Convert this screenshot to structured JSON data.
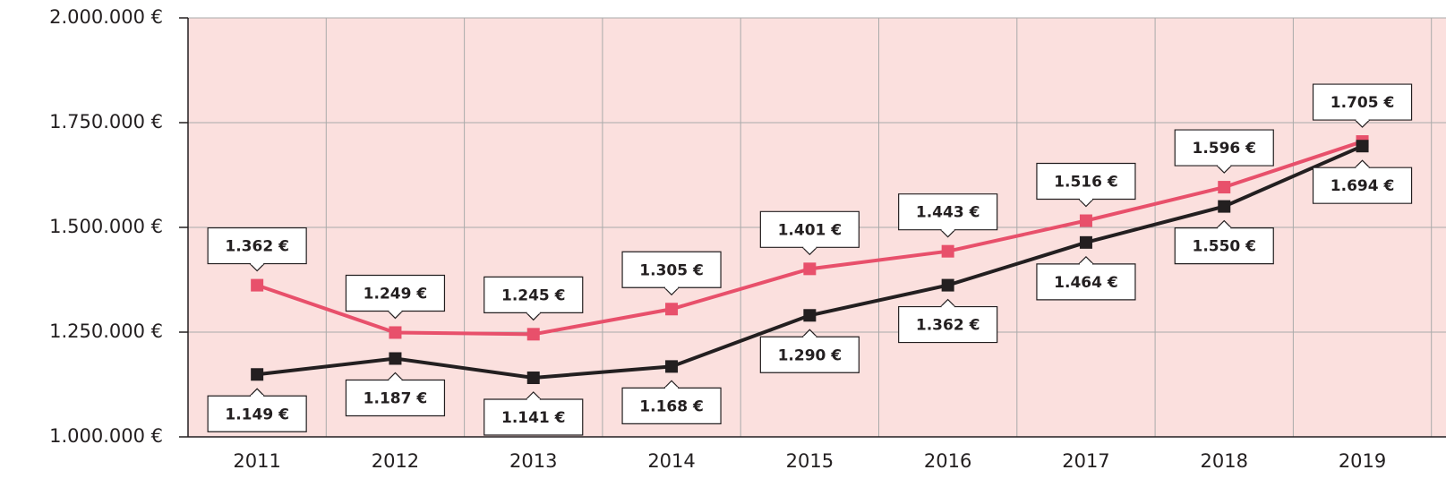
{
  "chart_data": {
    "type": "line",
    "categories": [
      "2011",
      "2012",
      "2013",
      "2014",
      "2015",
      "2016",
      "2017",
      "2018",
      "2019"
    ],
    "series": [
      {
        "name": null,
        "color": "#e8506b",
        "values": [
          1362000,
          1249000,
          1245000,
          1305000,
          1401000,
          1443000,
          1516000,
          1596000,
          1705000
        ],
        "value_labels": [
          "1.362 €",
          "1.249 €",
          "1.245 €",
          "1.305 €",
          "1.401 €",
          "1.443 €",
          "1.516 €",
          "1.596 €",
          "1.705 €"
        ]
      },
      {
        "name": null,
        "color": "#231f20",
        "values": [
          1149000,
          1187000,
          1141000,
          1168000,
          1290000,
          1362000,
          1464000,
          1550000,
          1694000
        ],
        "value_labels": [
          "1.149 €",
          "1.187 €",
          "1.141 €",
          "1.168 €",
          "1.290 €",
          "1.362 €",
          "1.464 €",
          "1.550 €",
          "1.694 €"
        ]
      }
    ],
    "ylim": [
      1000000,
      2000000
    ],
    "yticks": [
      {
        "value": 1000000,
        "label": "1.000.000 €"
      },
      {
        "value": 1250000,
        "label": "1.250.000 €"
      },
      {
        "value": 1500000,
        "label": "1.500.000 €"
      },
      {
        "value": 1750000,
        "label": "1.750.000 €"
      },
      {
        "value": 2000000,
        "label": "2.000.000 €"
      }
    ],
    "grid": true
  }
}
